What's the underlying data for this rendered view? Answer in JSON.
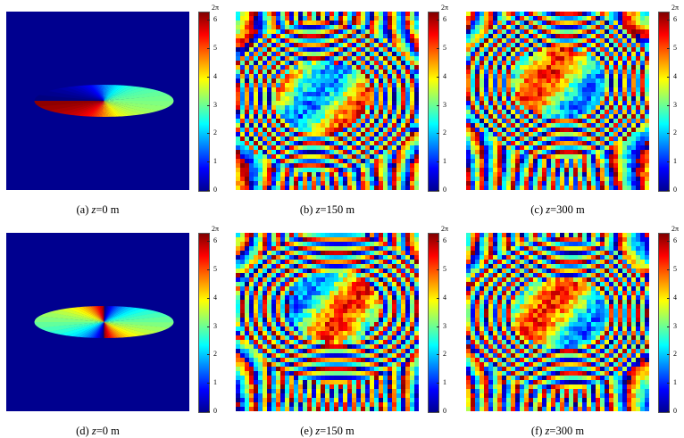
{
  "colorbar": {
    "top_label": "2π",
    "ticks": [
      "6",
      "5",
      "4",
      "3",
      "2",
      "1",
      "0"
    ]
  },
  "panels": [
    {
      "id": "a",
      "prefix": "(a) ",
      "var": "z",
      "value": "=0 m",
      "kind": "ellipse",
      "rot": 0
    },
    {
      "id": "b",
      "prefix": "(b) ",
      "var": "z",
      "value": "=150 m",
      "kind": "fringe",
      "seed": 3
    },
    {
      "id": "c",
      "prefix": "(c) ",
      "var": "z",
      "value": "=300 m",
      "kind": "fringe",
      "seed": 7
    },
    {
      "id": "d",
      "prefix": "(d) ",
      "var": "z",
      "value": "=0 m",
      "kind": "ellipse",
      "rot": 1
    },
    {
      "id": "e",
      "prefix": "(e) ",
      "var": "z",
      "value": "=150 m",
      "kind": "fringe",
      "seed": 11
    },
    {
      "id": "f",
      "prefix": "(f) ",
      "var": "z",
      "value": "=300 m",
      "kind": "fringe",
      "seed": 19
    }
  ]
}
